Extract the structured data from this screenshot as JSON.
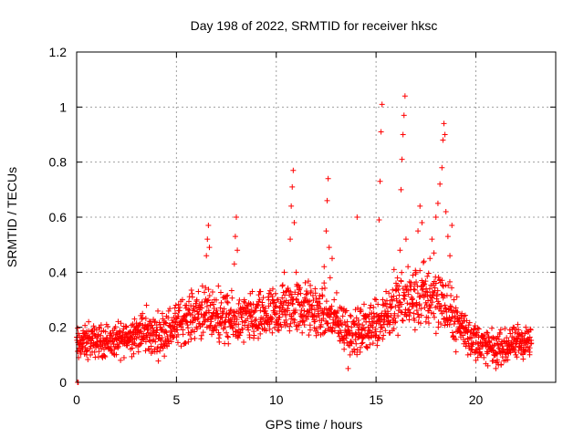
{
  "chart_data": {
    "type": "scatter",
    "title": "Day 198 of 2022, SRMTID for receiver hksc",
    "xlabel": "GPS time / hours",
    "ylabel": "SRMTID / TECUs",
    "xlim": [
      0,
      24
    ],
    "ylim": [
      0,
      1.2
    ],
    "xticks": [
      0,
      5,
      10,
      15,
      20
    ],
    "xtick_labels": [
      "0",
      "5",
      "10",
      "15",
      "20"
    ],
    "yticks": [
      0,
      0.2,
      0.4,
      0.6,
      0.8,
      1.0,
      1.2
    ],
    "ytick_labels": [
      "0",
      "0.2",
      "0.4",
      "0.6",
      "0.8",
      "1",
      "1.2"
    ],
    "grid": true,
    "marker": "+",
    "series": [
      {
        "name": "SRMTID",
        "color": "#ff0000",
        "points": [
          [
            0.05,
            0.0
          ],
          [
            0.08,
            0.0
          ],
          [
            0.1,
            0.09
          ],
          [
            0.2,
            0.15
          ],
          [
            0.3,
            0.12
          ],
          [
            0.4,
            0.18
          ],
          [
            0.5,
            0.1
          ],
          [
            0.6,
            0.22
          ],
          [
            0.7,
            0.14
          ],
          [
            0.8,
            0.16
          ],
          [
            0.9,
            0.11
          ],
          [
            1.0,
            0.19
          ],
          [
            1.1,
            0.13
          ],
          [
            1.2,
            0.17
          ],
          [
            1.3,
            0.09
          ],
          [
            1.4,
            0.14
          ],
          [
            1.5,
            0.21
          ],
          [
            1.6,
            0.12
          ],
          [
            1.7,
            0.16
          ],
          [
            1.8,
            0.15
          ],
          [
            1.9,
            0.1
          ],
          [
            2.0,
            0.18
          ],
          [
            2.1,
            0.13
          ],
          [
            2.2,
            0.08
          ],
          [
            2.3,
            0.17
          ],
          [
            2.4,
            0.14
          ],
          [
            2.5,
            0.2
          ],
          [
            2.6,
            0.15
          ],
          [
            2.7,
            0.12
          ],
          [
            2.8,
            0.18
          ],
          [
            2.9,
            0.23
          ],
          [
            3.0,
            0.16
          ],
          [
            3.1,
            0.19
          ],
          [
            3.2,
            0.14
          ],
          [
            3.3,
            0.25
          ],
          [
            3.4,
            0.2
          ],
          [
            3.5,
            0.28
          ],
          [
            3.6,
            0.18
          ],
          [
            3.7,
            0.22
          ],
          [
            3.8,
            0.15
          ],
          [
            3.9,
            0.12
          ],
          [
            4.0,
            0.19
          ],
          [
            4.1,
            0.16
          ],
          [
            4.2,
            0.21
          ],
          [
            4.3,
            0.13
          ],
          [
            4.4,
            0.18
          ],
          [
            4.5,
            0.24
          ],
          [
            4.6,
            0.15
          ],
          [
            4.7,
            0.2
          ],
          [
            4.8,
            0.17
          ],
          [
            4.9,
            0.22
          ],
          [
            5.0,
            0.19
          ],
          [
            5.1,
            0.26
          ],
          [
            5.2,
            0.21
          ],
          [
            5.3,
            0.3
          ],
          [
            5.4,
            0.24
          ],
          [
            5.5,
            0.28
          ],
          [
            5.6,
            0.18
          ],
          [
            5.7,
            0.22
          ],
          [
            5.8,
            0.31
          ],
          [
            5.9,
            0.26
          ],
          [
            6.0,
            0.2
          ],
          [
            6.1,
            0.33
          ],
          [
            6.2,
            0.27
          ],
          [
            6.3,
            0.35
          ],
          [
            6.4,
            0.22
          ],
          [
            6.5,
            0.46
          ],
          [
            6.55,
            0.52
          ],
          [
            6.6,
            0.57
          ],
          [
            6.65,
            0.49
          ],
          [
            6.7,
            0.28
          ],
          [
            6.8,
            0.24
          ],
          [
            6.9,
            0.3
          ],
          [
            7.0,
            0.19
          ],
          [
            7.1,
            0.35
          ],
          [
            7.2,
            0.27
          ],
          [
            7.3,
            0.22
          ],
          [
            7.4,
            0.31
          ],
          [
            7.5,
            0.18
          ],
          [
            7.6,
            0.14
          ],
          [
            7.7,
            0.26
          ],
          [
            7.8,
            0.2
          ],
          [
            7.9,
            0.43
          ],
          [
            7.95,
            0.53
          ],
          [
            8.0,
            0.6
          ],
          [
            8.05,
            0.48
          ],
          [
            8.1,
            0.25
          ],
          [
            8.2,
            0.18
          ],
          [
            8.3,
            0.22
          ],
          [
            8.4,
            0.3
          ],
          [
            8.5,
            0.26
          ],
          [
            8.6,
            0.19
          ],
          [
            8.7,
            0.24
          ],
          [
            8.8,
            0.33
          ],
          [
            8.9,
            0.21
          ],
          [
            9.0,
            0.27
          ],
          [
            9.1,
            0.16
          ],
          [
            9.2,
            0.22
          ],
          [
            9.3,
            0.29
          ],
          [
            9.4,
            0.19
          ],
          [
            9.5,
            0.25
          ],
          [
            9.6,
            0.31
          ],
          [
            9.7,
            0.23
          ],
          [
            9.8,
            0.18
          ],
          [
            9.9,
            0.26
          ],
          [
            10.0,
            0.21
          ],
          [
            10.1,
            0.3
          ],
          [
            10.2,
            0.27
          ],
          [
            10.3,
            0.35
          ],
          [
            10.4,
            0.4
          ],
          [
            10.5,
            0.33
          ],
          [
            10.6,
            0.28
          ],
          [
            10.7,
            0.52
          ],
          [
            10.75,
            0.64
          ],
          [
            10.8,
            0.71
          ],
          [
            10.85,
            0.77
          ],
          [
            10.9,
            0.58
          ],
          [
            11.0,
            0.4
          ],
          [
            11.1,
            0.29
          ],
          [
            11.2,
            0.22
          ],
          [
            11.3,
            0.18
          ],
          [
            11.4,
            0.26
          ],
          [
            11.5,
            0.32
          ],
          [
            11.6,
            0.24
          ],
          [
            11.7,
            0.19
          ],
          [
            11.8,
            0.28
          ],
          [
            11.9,
            0.22
          ],
          [
            12.0,
            0.17
          ],
          [
            12.1,
            0.25
          ],
          [
            12.2,
            0.2
          ],
          [
            12.3,
            0.34
          ],
          [
            12.4,
            0.42
          ],
          [
            12.5,
            0.55
          ],
          [
            12.55,
            0.66
          ],
          [
            12.6,
            0.74
          ],
          [
            12.65,
            0.49
          ],
          [
            12.7,
            0.38
          ],
          [
            12.8,
            0.45
          ],
          [
            12.9,
            0.3
          ],
          [
            13.0,
            0.24
          ],
          [
            13.1,
            0.18
          ],
          [
            13.2,
            0.15
          ],
          [
            13.3,
            0.21
          ],
          [
            13.4,
            0.12
          ],
          [
            13.5,
            0.16
          ],
          [
            13.6,
            0.05
          ],
          [
            13.7,
            0.1
          ],
          [
            13.8,
            0.18
          ],
          [
            13.9,
            0.22
          ],
          [
            14.0,
            0.14
          ],
          [
            14.05,
            0.6
          ],
          [
            14.1,
            0.19
          ],
          [
            14.2,
            0.11
          ],
          [
            14.3,
            0.16
          ],
          [
            14.4,
            0.23
          ],
          [
            14.5,
            0.13
          ],
          [
            14.6,
            0.2
          ],
          [
            14.7,
            0.27
          ],
          [
            14.8,
            0.17
          ],
          [
            14.9,
            0.22
          ],
          [
            15.0,
            0.3
          ],
          [
            15.1,
            0.24
          ],
          [
            15.15,
            0.59
          ],
          [
            15.2,
            0.73
          ],
          [
            15.25,
            0.91
          ],
          [
            15.3,
            1.01
          ],
          [
            15.35,
            0.28
          ],
          [
            15.4,
            0.21
          ],
          [
            15.5,
            0.33
          ],
          [
            15.6,
            0.25
          ],
          [
            15.7,
            0.18
          ],
          [
            15.8,
            0.3
          ],
          [
            15.9,
            0.41
          ],
          [
            16.0,
            0.36
          ],
          [
            16.1,
            0.28
          ],
          [
            16.2,
            0.48
          ],
          [
            16.25,
            0.7
          ],
          [
            16.3,
            0.81
          ],
          [
            16.35,
            0.9
          ],
          [
            16.4,
            0.97
          ],
          [
            16.45,
            1.04
          ],
          [
            16.5,
            0.52
          ],
          [
            16.6,
            0.42
          ],
          [
            16.7,
            0.35
          ],
          [
            16.8,
            0.3
          ],
          [
            16.9,
            0.25
          ],
          [
            17.0,
            0.4
          ],
          [
            17.1,
            0.55
          ],
          [
            17.2,
            0.64
          ],
          [
            17.3,
            0.58
          ],
          [
            17.4,
            0.44
          ],
          [
            17.5,
            0.33
          ],
          [
            17.6,
            0.26
          ],
          [
            17.7,
            0.45
          ],
          [
            17.8,
            0.52
          ],
          [
            17.9,
            0.47
          ],
          [
            18.0,
            0.6
          ],
          [
            18.1,
            0.65
          ],
          [
            18.2,
            0.72
          ],
          [
            18.3,
            0.78
          ],
          [
            18.35,
            0.88
          ],
          [
            18.4,
            0.94
          ],
          [
            18.45,
            0.9
          ],
          [
            18.5,
            0.62
          ],
          [
            18.6,
            0.53
          ],
          [
            18.7,
            0.46
          ],
          [
            18.8,
            0.57
          ],
          [
            18.9,
            0.3
          ],
          [
            19.0,
            0.27
          ],
          [
            19.1,
            0.22
          ],
          [
            19.2,
            0.18
          ],
          [
            19.3,
            0.25
          ],
          [
            19.4,
            0.14
          ],
          [
            19.5,
            0.2
          ],
          [
            19.6,
            0.1
          ],
          [
            19.7,
            0.16
          ],
          [
            19.8,
            0.13
          ],
          [
            19.9,
            0.19
          ],
          [
            20.0,
            0.08
          ],
          [
            20.1,
            0.14
          ],
          [
            20.2,
            0.11
          ],
          [
            20.3,
            0.17
          ],
          [
            20.4,
            0.09
          ],
          [
            20.5,
            0.13
          ],
          [
            20.6,
            0.06
          ],
          [
            20.7,
            0.12
          ],
          [
            20.8,
            0.16
          ],
          [
            20.9,
            0.1
          ],
          [
            21.0,
            0.05
          ],
          [
            21.1,
            0.14
          ],
          [
            21.2,
            0.18
          ],
          [
            21.3,
            0.11
          ],
          [
            21.4,
            0.15
          ],
          [
            21.5,
            0.08
          ],
          [
            21.6,
            0.12
          ],
          [
            21.7,
            0.19
          ],
          [
            21.8,
            0.13
          ],
          [
            21.9,
            0.16
          ],
          [
            22.0,
            0.1
          ],
          [
            22.1,
            0.21
          ],
          [
            22.2,
            0.14
          ],
          [
            22.3,
            0.18
          ],
          [
            22.4,
            0.12
          ],
          [
            22.5,
            0.2
          ],
          [
            22.6,
            0.15
          ],
          [
            22.7,
            0.11
          ]
        ],
        "band": {
          "description": "dense cloud of samples along the baseline",
          "x": [
            0.0,
            1.0,
            2.0,
            3.0,
            4.0,
            5.0,
            6.0,
            7.0,
            8.0,
            9.0,
            10.0,
            11.0,
            12.0,
            13.0,
            14.0,
            15.0,
            16.0,
            17.0,
            18.0,
            19.0,
            20.0,
            21.0,
            22.0,
            22.8
          ],
          "center": [
            0.14,
            0.15,
            0.15,
            0.18,
            0.17,
            0.21,
            0.25,
            0.24,
            0.22,
            0.23,
            0.25,
            0.28,
            0.26,
            0.22,
            0.18,
            0.22,
            0.28,
            0.3,
            0.32,
            0.22,
            0.15,
            0.12,
            0.14,
            0.15
          ],
          "spread": [
            0.06,
            0.06,
            0.06,
            0.07,
            0.08,
            0.08,
            0.09,
            0.09,
            0.09,
            0.09,
            0.1,
            0.1,
            0.1,
            0.09,
            0.08,
            0.1,
            0.11,
            0.12,
            0.13,
            0.09,
            0.07,
            0.06,
            0.06,
            0.06
          ],
          "samples": 1600
        }
      }
    ]
  }
}
